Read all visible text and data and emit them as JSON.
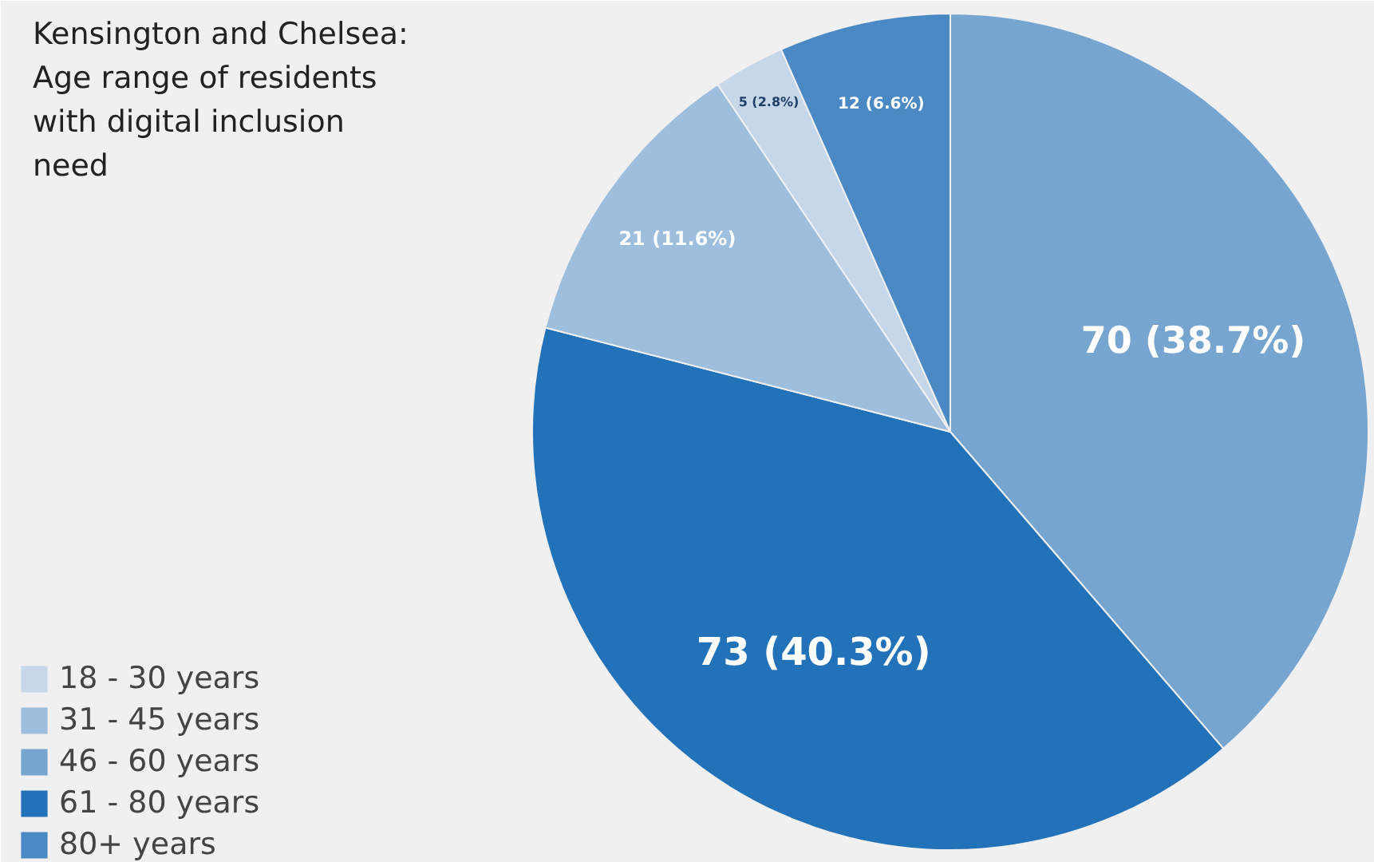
{
  "chart_data": {
    "type": "pie",
    "title": "Kensington and Chelsea: Age range of residents with digital inclusion need",
    "categories": [
      "46 - 60 years",
      "61 - 80 years",
      "31 - 45 years",
      "18 - 30 years",
      "80+ years"
    ],
    "values": [
      70,
      73,
      21,
      5,
      12
    ],
    "colors": [
      "#76a5d0",
      "#2272b9",
      "#9dbedd",
      "#c5d7e8",
      "#4a89c4"
    ],
    "value_labels": [
      "70 (38.7%)",
      "73 (40.3%)",
      "21 (11.6%)",
      "5 (2.8%)",
      "12 (6.6%)"
    ],
    "legend": "bottom left"
  }
}
